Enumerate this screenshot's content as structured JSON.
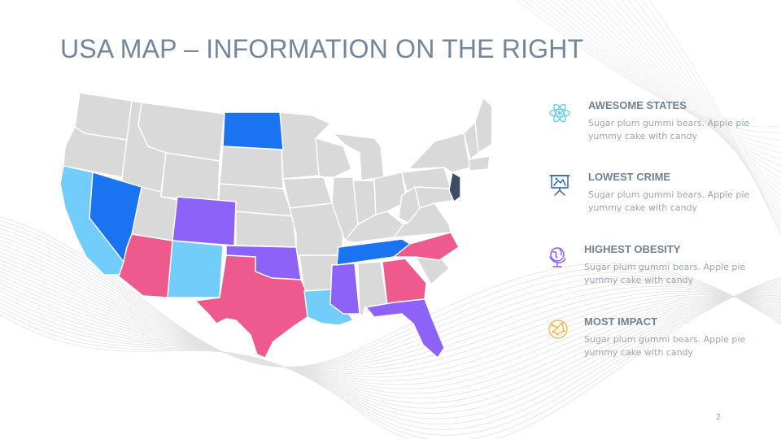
{
  "slide": {
    "title": "USA MAP – INFORMATION ON THE RIGHT",
    "page_number": "2"
  },
  "legend": [
    {
      "icon": "atom-icon",
      "color": "#5cd0e6",
      "title": "AWESOME STATES",
      "text": "Sugar plum gummi bears. Apple pie yummy cake with candy"
    },
    {
      "icon": "presentation-board-icon",
      "color": "#1f5fb8",
      "title": "LOWEST CRIME",
      "text": "Sugar plum gummi bears. Apple pie yummy cake with candy"
    },
    {
      "icon": "globe-stand-icon",
      "color": "#8a5cf6",
      "title": "HIGHEST OBESITY",
      "text": "Sugar plum gummi bears. Apple pie yummy cake with candy"
    },
    {
      "icon": "network-globe-icon",
      "color": "#f2b544",
      "title": "MOST IMPACT",
      "text": "Sugar plum gummi bears. Apple pie yummy cake with candy"
    }
  ],
  "map": {
    "base_color": "#d9d9d9",
    "highlighted_states": [
      {
        "state": "California",
        "color": "#73cdfb"
      },
      {
        "state": "New Mexico",
        "color": "#73cdfb"
      },
      {
        "state": "Louisiana",
        "color": "#73cdfb"
      },
      {
        "state": "Nevada",
        "color": "#1a73f0"
      },
      {
        "state": "North Dakota",
        "color": "#1a73f0"
      },
      {
        "state": "Tennessee",
        "color": "#1a73f0"
      },
      {
        "state": "Colorado",
        "color": "#8c62f8"
      },
      {
        "state": "Oklahoma",
        "color": "#8c62f8"
      },
      {
        "state": "Mississippi",
        "color": "#8c62f8"
      },
      {
        "state": "Florida",
        "color": "#8c62f8"
      },
      {
        "state": "Arizona",
        "color": "#ee5a8d"
      },
      {
        "state": "Texas",
        "color": "#ee5a8d"
      },
      {
        "state": "Georgia",
        "color": "#ee5a8d"
      },
      {
        "state": "North Carolina",
        "color": "#ee5a8d"
      },
      {
        "state": "New Jersey",
        "color": "#3b4d66"
      }
    ]
  }
}
